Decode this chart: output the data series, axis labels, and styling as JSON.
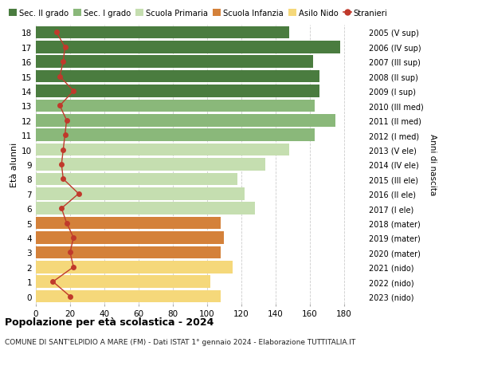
{
  "ages": [
    18,
    17,
    16,
    15,
    14,
    13,
    12,
    11,
    10,
    9,
    8,
    7,
    6,
    5,
    4,
    3,
    2,
    1,
    0
  ],
  "bar_values": [
    148,
    178,
    162,
    166,
    166,
    163,
    175,
    163,
    148,
    134,
    118,
    122,
    128,
    108,
    110,
    108,
    115,
    102,
    108
  ],
  "right_labels": [
    "2005 (V sup)",
    "2006 (IV sup)",
    "2007 (III sup)",
    "2008 (II sup)",
    "2009 (I sup)",
    "2010 (III med)",
    "2011 (II med)",
    "2012 (I med)",
    "2013 (V ele)",
    "2014 (IV ele)",
    "2015 (III ele)",
    "2016 (II ele)",
    "2017 (I ele)",
    "2018 (mater)",
    "2019 (mater)",
    "2020 (mater)",
    "2021 (nido)",
    "2022 (nido)",
    "2023 (nido)"
  ],
  "stranieri_values": [
    12,
    17,
    16,
    14,
    22,
    14,
    18,
    17,
    16,
    15,
    16,
    25,
    15,
    18,
    22,
    20,
    22,
    10,
    20
  ],
  "bar_colors": {
    "sec2": "#4a7c3f",
    "sec1": "#8ab87a",
    "primaria": "#c5deb0",
    "infanzia": "#d4813a",
    "nido": "#f5d87a"
  },
  "age_school_type": {
    "sec2": [
      14,
      15,
      16,
      17,
      18
    ],
    "sec1": [
      11,
      12,
      13
    ],
    "primaria": [
      6,
      7,
      8,
      9,
      10
    ],
    "infanzia": [
      3,
      4,
      5
    ],
    "nido": [
      0,
      1,
      2
    ]
  },
  "xlim": [
    0,
    190
  ],
  "xticks": [
    0,
    20,
    40,
    60,
    80,
    100,
    120,
    140,
    160,
    180
  ],
  "ylabel_left": "Età alunni",
  "ylabel_right": "Anni di nascita",
  "title": "Popolazione per età scolastica - 2024",
  "subtitle": "COMUNE DI SANT'ELPIDIO A MARE (FM) - Dati ISTAT 1° gennaio 2024 - Elaborazione TUTTITALIA.IT",
  "legend_labels": [
    "Sec. II grado",
    "Sec. I grado",
    "Scuola Primaria",
    "Scuola Infanzia",
    "Asilo Nido",
    "Stranieri"
  ],
  "legend_colors": [
    "#4a7c3f",
    "#8ab87a",
    "#c5deb0",
    "#d4813a",
    "#f5d87a",
    "#c0392b"
  ],
  "stranieri_color": "#c0392b",
  "bg_color": "#ffffff",
  "grid_color": "#cccccc"
}
